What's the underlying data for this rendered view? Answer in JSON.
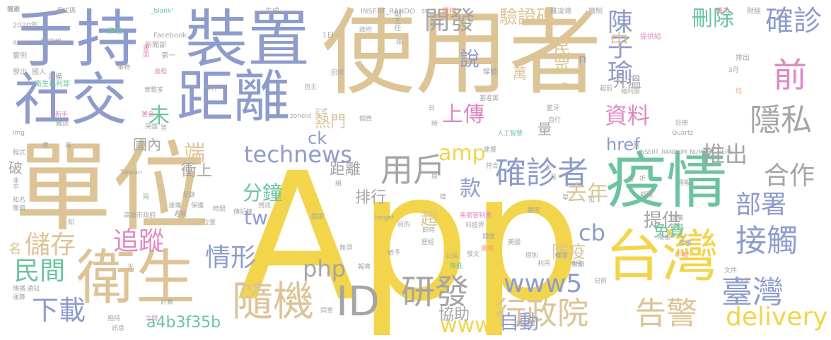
{
  "palette": {
    "tan": "#dcc496",
    "yellow": "#f2d54a",
    "blue": "#8e9ccc",
    "green": "#6cc39f",
    "gray": "#a5a5a5",
    "pink": "#e088c2",
    "orange": "#f09a73",
    "lime": "#b6d65e"
  },
  "words": [
    {
      "text": "App",
      "color": "yellow"
    },
    {
      "text": "使用者",
      "color": "tan"
    },
    {
      "text": "單位",
      "color": "tan"
    },
    {
      "text": "手持",
      "color": "blue"
    },
    {
      "text": "裝置",
      "color": "blue"
    },
    {
      "text": "社交",
      "color": "blue"
    },
    {
      "text": "距離",
      "color": "blue"
    },
    {
      "text": "疫情",
      "color": "green"
    },
    {
      "text": "衛生",
      "color": "tan"
    },
    {
      "text": "台灣",
      "color": "yellow"
    },
    {
      "text": "隨機",
      "color": "tan"
    },
    {
      "text": "ID",
      "color": "gray"
    },
    {
      "text": "確診者",
      "color": "blue"
    },
    {
      "text": "用戶",
      "color": "gray"
    },
    {
      "text": "研發",
      "color": "gray"
    },
    {
      "text": "www5",
      "color": "blue"
    },
    {
      "text": "technews",
      "color": "blue"
    },
    {
      "text": "行政院",
      "color": "tan"
    },
    {
      "text": "告警",
      "color": "tan"
    },
    {
      "text": "臺灣",
      "color": "blue"
    },
    {
      "text": "接觸",
      "color": "blue"
    },
    {
      "text": "合作",
      "color": "gray"
    },
    {
      "text": "部署",
      "color": "blue"
    },
    {
      "text": "隱私",
      "color": "gray"
    },
    {
      "text": "確診",
      "color": "blue"
    },
    {
      "text": "前",
      "color": "pink"
    },
    {
      "text": "delivery",
      "color": "yellow"
    },
    {
      "text": "自動",
      "color": "blue"
    },
    {
      "text": "www",
      "color": "yellow"
    },
    {
      "text": "下載",
      "color": "blue"
    },
    {
      "text": "民間",
      "color": "green"
    },
    {
      "text": "儲存",
      "color": "tan"
    },
    {
      "text": "追蹤",
      "color": "pink"
    },
    {
      "text": "情形",
      "color": "blue"
    },
    {
      "text": "php",
      "color": "gray"
    },
    {
      "text": "cb",
      "color": "blue"
    },
    {
      "text": "a4b3f35b",
      "color": "green"
    },
    {
      "text": "分鐘",
      "color": "green"
    },
    {
      "text": "tw",
      "color": "blue"
    },
    {
      "text": "amp",
      "color": "yellow"
    },
    {
      "text": "款",
      "color": "blue"
    },
    {
      "text": "上傳",
      "color": "pink"
    },
    {
      "text": "資料",
      "color": "pink"
    },
    {
      "text": "去年",
      "color": "tan"
    },
    {
      "text": "推出",
      "color": "gray"
    },
    {
      "text": "陳子瑜",
      "color": "blue"
    },
    {
      "text": "刪除",
      "color": "green"
    },
    {
      "text": "驗證碼",
      "color": "tan"
    },
    {
      "text": "開發",
      "color": "gray"
    },
    {
      "text": "說",
      "color": "blue"
    },
    {
      "text": "熱門",
      "color": "tan"
    },
    {
      "text": "未",
      "color": "green"
    },
    {
      "text": "端",
      "color": "tan"
    },
    {
      "text": "中",
      "color": "tan"
    },
    {
      "text": "民眾",
      "color": "tan"
    },
    {
      "text": "升溫",
      "color": "gray"
    },
    {
      "text": "href",
      "color": "blue"
    },
    {
      "text": "提供",
      "color": "gray"
    },
    {
      "text": "免費",
      "color": "green"
    },
    {
      "text": "防疫",
      "color": "tan"
    },
    {
      "text": "協助",
      "color": "gray"
    },
    {
      "text": "距離",
      "color": "gray"
    },
    {
      "text": "排行",
      "color": "gray"
    },
    {
      "text": "衝上",
      "color": "gray"
    },
    {
      "text": "國內",
      "color": "gray"
    },
    {
      "text": "萬",
      "color": "tan"
    },
    {
      "text": "量",
      "color": "gray"
    },
    {
      "text": "超",
      "color": "tan"
    },
    {
      "text": "ck",
      "color": "blue"
    },
    {
      "text": "a",
      "color": "tan"
    },
    {
      "text": "n",
      "color": "blue"
    },
    {
      "text": "名",
      "color": "tan"
    },
    {
      "text": "破",
      "color": "gray"
    },
    {
      "text": "程式碼",
      "color": "gray"
    },
    {
      "text": "_blank'",
      "color": "green"
    },
    {
      "text": "生成",
      "color": "gray"
    },
    {
      "text": "INSERT_RANDO",
      "color": "gray"
    },
    {
      "text": "src",
      "color": "gray"
    },
    {
      "text": "嚴格",
      "color": "orange"
    },
    {
      "text": "雖凌德",
      "color": "gray"
    },
    {
      "text": "機制",
      "color": "gray"
    },
    {
      "text": "稱為",
      "color": "pink"
    },
    {
      "text": "財經",
      "color": "gray"
    },
    {
      "text": "2020年",
      "color": "gray"
    },
    {
      "text": "推播",
      "color": "green"
    },
    {
      "text": "Facebook",
      "color": "gray"
    },
    {
      "text": "新聞部",
      "color": "gray"
    },
    {
      "text": "副主任",
      "color": "gray"
    },
    {
      "text": "政府",
      "color": "gray"
    },
    {
      "text": "1日",
      "color": "gray"
    },
    {
      "text": "年",
      "color": "gray"
    },
    {
      "text": "avw",
      "color": "gray"
    },
    {
      "text": "電訊報",
      "color": "gray"
    },
    {
      "text": "畫面",
      "color": "pink"
    },
    {
      "text": "實例",
      "color": "gray"
    },
    {
      "text": "第一",
      "color": "gray"
    },
    {
      "text": "提供給",
      "color": "pink"
    },
    {
      "text": "排出",
      "color": "gray"
    },
    {
      "text": "發出",
      "color": "gray"
    },
    {
      "text": "國人",
      "color": "gray"
    },
    {
      "text": "具備",
      "color": "gray"
    },
    {
      "text": "衛生福利部",
      "color": "green"
    },
    {
      "text": "事物",
      "color": "gray"
    },
    {
      "text": "回溯",
      "color": "gray"
    },
    {
      "text": "媒體",
      "color": "gray"
    },
    {
      "text": "過程",
      "color": "pink"
    },
    {
      "text": "實驗室",
      "color": "gray"
    },
    {
      "text": "條件",
      "color": "gray"
    },
    {
      "text": "自主",
      "color": "gray"
    },
    {
      "text": "基進黨",
      "color": "gray"
    },
    {
      "text": "超前",
      "color": "gray"
    },
    {
      "text": "福利部",
      "color": "gray"
    },
    {
      "text": "註冊",
      "color": "gray"
    },
    {
      "text": "zoneid",
      "color": "gray"
    },
    {
      "text": "正式",
      "color": "gray"
    },
    {
      "text": "藍牙",
      "color": "gray"
    },
    {
      "text": "自行",
      "color": "gray"
    },
    {
      "text": "新手",
      "color": "pink"
    },
    {
      "text": "雜誌",
      "color": "gray"
    },
    {
      "text": "署名",
      "color": "pink"
    },
    {
      "text": "英國",
      "color": "gray"
    },
    {
      "text": "Quartz",
      "color": "gray"
    },
    {
      "text": "人工智慧",
      "color": "green"
    },
    {
      "text": "INSERT_RANDOM_NUMBER_HERE'",
      "color": "gray"
    },
    {
      "text": "Taiwan",
      "color": "gray"
    },
    {
      "text": "高雄市政府",
      "color": "gray"
    },
    {
      "text": "target",
      "color": "gray"
    },
    {
      "text": "疾病管制署",
      "color": "pink"
    },
    {
      "text": "科技界",
      "color": "gray"
    },
    {
      "text": "國家",
      "color": "gray"
    },
    {
      "text": "傳記錄",
      "color": "gray"
    },
    {
      "text": "位置",
      "color": "gray"
    },
    {
      "text": "時間",
      "color": "gray"
    },
    {
      "text": "資訊",
      "color": "gray"
    },
    {
      "text": "目的",
      "color": "gray"
    },
    {
      "text": "即時",
      "color": "gray"
    },
    {
      "text": "歷經",
      "color": "gray"
    },
    {
      "text": "開放",
      "color": "gray"
    },
    {
      "text": "團隊",
      "color": "orange"
    },
    {
      "text": "無須",
      "color": "gray"
    },
    {
      "text": "給予",
      "color": "gray"
    },
    {
      "text": "發文",
      "color": "gray"
    },
    {
      "text": "公民",
      "color": "gray"
    },
    {
      "text": "降低",
      "color": "green"
    },
    {
      "text": "報導",
      "color": "gray"
    },
    {
      "text": "意願",
      "color": "gray"
    },
    {
      "text": "傳播",
      "color": "gray"
    },
    {
      "text": "通知",
      "color": "gray"
    },
    {
      "text": "計算",
      "color": "gray"
    },
    {
      "text": "之間",
      "color": "pink"
    },
    {
      "text": "資料庫",
      "color": "gray"
    },
    {
      "text": "同意",
      "color": "gray"
    },
    {
      "text": "抱持",
      "color": "gray"
    },
    {
      "text": "訊息",
      "color": "gray"
    },
    {
      "text": "日前",
      "color": "gray"
    },
    {
      "text": "文件",
      "color": "gray"
    },
    {
      "text": "作者",
      "color": "gray"
    },
    {
      "text": "美國",
      "color": "gray"
    },
    {
      "text": "原則",
      "color": "gray"
    },
    {
      "text": "權限",
      "color": "gray"
    },
    {
      "text": "6月",
      "color": "gray"
    },
    {
      "text": "利用",
      "color": "gray"
    },
    {
      "text": "接獲",
      "color": "gray"
    },
    {
      "text": "隨後",
      "color": "gray"
    },
    {
      "text": "儲備",
      "color": "gray"
    },
    {
      "text": "嚴密",
      "color": "gray"
    },
    {
      "text": "手機",
      "color": "orange"
    },
    {
      "text": "運算",
      "color": "gray"
    },
    {
      "text": "無償",
      "color": "gray"
    },
    {
      "text": "知名",
      "color": "gray"
    },
    {
      "text": "程式",
      "color": "gray"
    },
    {
      "text": "高",
      "color": "gray"
    },
    {
      "text": "更",
      "color": "gray"
    },
    {
      "text": "img",
      "color": "gray"
    },
    {
      "text": "皆",
      "color": "gray"
    },
    {
      "text": "3月",
      "color": "gray"
    },
    {
      "text": "均",
      "color": "orange"
    },
    {
      "text": "顧問",
      "color": "gray"
    },
    {
      "text": "折",
      "color": "gray"
    },
    {
      "text": "通報",
      "color": "gray"
    },
    {
      "text": "平",
      "color": "gray"
    },
    {
      "text": "天",
      "color": "gray"
    },
    {
      "text": "非",
      "color": "gray"
    },
    {
      "text": "徵",
      "color": "gray"
    },
    {
      "text": "原",
      "color": "gray"
    },
    {
      "text": "次",
      "color": "gray"
    },
    {
      "text": "月",
      "color": "gray"
    },
    {
      "text": "早",
      "color": "gray"
    },
    {
      "text": "扣",
      "color": "gray"
    },
    {
      "text": "日",
      "color": "gray"
    },
    {
      "text": "時",
      "color": "gray"
    },
    {
      "text": "個資",
      "color": "gray"
    },
    {
      "text": "符合",
      "color": "gray"
    },
    {
      "text": "建置",
      "color": "gray"
    },
    {
      "text": "張",
      "color": "gray"
    },
    {
      "text": "廣",
      "color": "gray"
    },
    {
      "text": "兩",
      "color": "gray"
    },
    {
      "text": "知",
      "color": "gray"
    },
    {
      "text": "組",
      "color": "gray"
    },
    {
      "text": "足跡",
      "color": "gray"
    },
    {
      "text": "保護",
      "color": "gray"
    },
    {
      "text": "週報",
      "color": "gray"
    },
    {
      "text": "遠端",
      "color": "gray"
    },
    {
      "text": "傳送",
      "color": "gray"
    },
    {
      "text": "提到",
      "color": "gray"
    }
  ]
}
